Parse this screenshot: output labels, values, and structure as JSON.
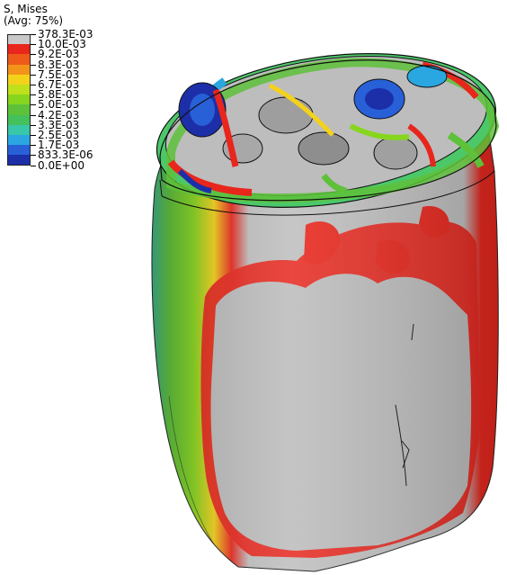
{
  "legend": {
    "title_line1": "S, Mises",
    "title_line2": "(Avg: 75%)",
    "labels": [
      "378.3E-03",
      "10.0E-03",
      "9.2E-03",
      "8.3E-03",
      "7.5E-03",
      "6.7E-03",
      "5.8E-03",
      "5.0E-03",
      "4.2E-03",
      "3.3E-03",
      "2.5E-03",
      "1.7E-03",
      "833.3E-06",
      "0.0E+00"
    ],
    "colors": [
      "#c8c8c8",
      "#e8261c",
      "#ee5a1a",
      "#f3931a",
      "#f5d21a",
      "#bfe01a",
      "#86d61e",
      "#5ec13a",
      "#44c05c",
      "#38c7a8",
      "#2aa7e0",
      "#2860d8",
      "#1c2fa8"
    ]
  }
}
